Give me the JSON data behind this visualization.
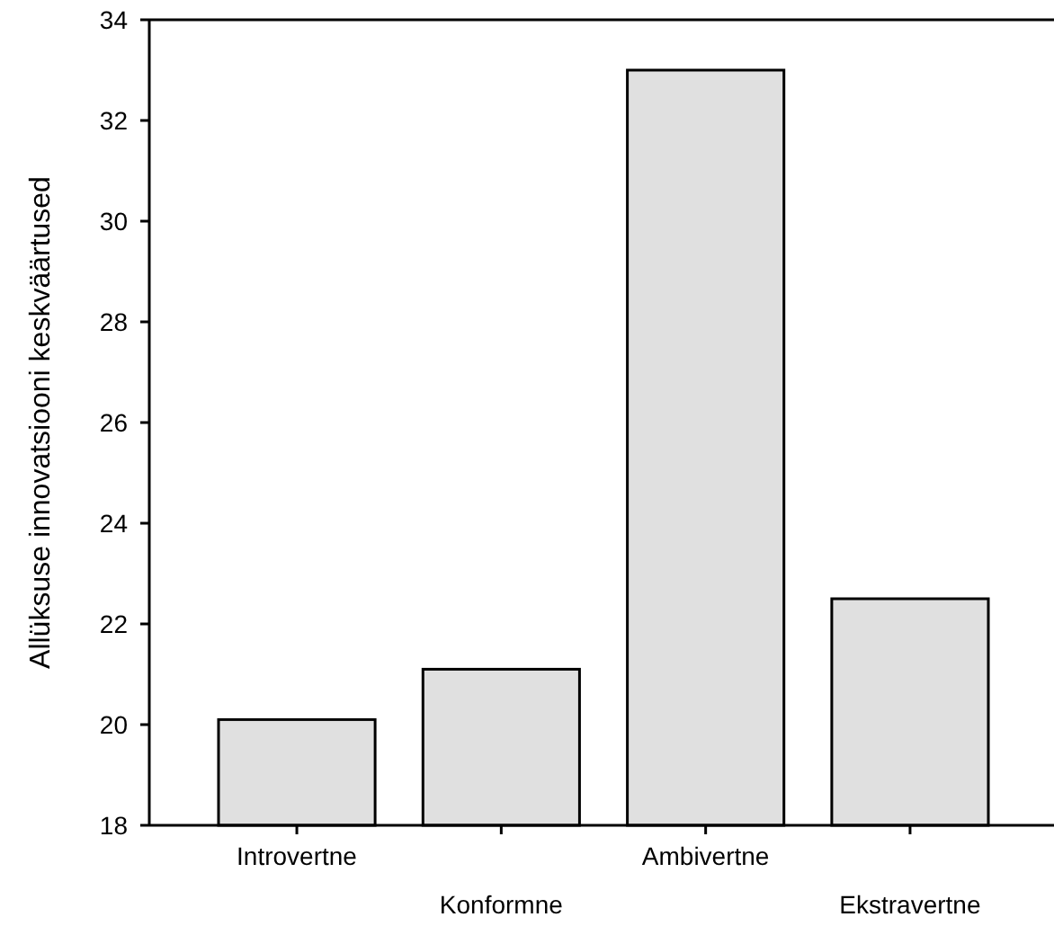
{
  "chart_data": {
    "type": "bar",
    "ylabel": "Allüksuse innovatsiooni keskväärtused",
    "categories": [
      "Introvertne",
      "Konformne",
      "Ambivertne",
      "Ekstravertne"
    ],
    "values": [
      20.1,
      21.1,
      33.0,
      22.5
    ],
    "color": "#e0e0e0",
    "ylim": [
      18,
      34
    ],
    "yticks": [
      18,
      20,
      22,
      24,
      26,
      28,
      30,
      32,
      34
    ],
    "grid": false
  }
}
